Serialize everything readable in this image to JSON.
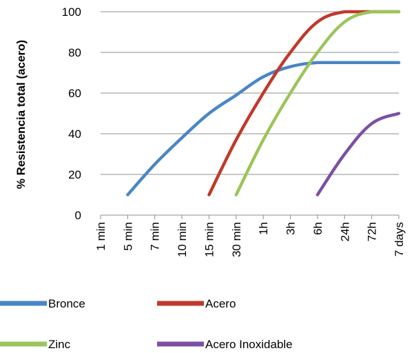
{
  "chart_data": {
    "type": "line",
    "ylabel": "% Resistencia total (acero)",
    "xlabel": "",
    "ylim": [
      0,
      100
    ],
    "yticks": [
      0,
      20,
      40,
      60,
      80,
      100
    ],
    "categories": [
      "1 min",
      "5 min",
      "7 min",
      "10 min",
      "15 min",
      "30 min",
      "1h",
      "3h",
      "6h",
      "24h",
      "72h",
      "7 days"
    ],
    "grid": true,
    "legend_position": "bottom",
    "series": [
      {
        "name": "Bronce",
        "color": "#4A86C5",
        "points": [
          [
            1,
            10
          ],
          [
            2,
            25
          ],
          [
            3,
            38
          ],
          [
            4,
            50
          ],
          [
            5,
            59
          ],
          [
            6,
            68
          ],
          [
            7,
            73
          ],
          [
            8,
            75
          ],
          [
            9,
            75
          ],
          [
            10,
            75
          ],
          [
            11,
            75
          ]
        ]
      },
      {
        "name": "Acero",
        "color": "#C0392B",
        "points": [
          [
            4,
            10
          ],
          [
            5,
            37
          ],
          [
            6,
            60
          ],
          [
            7,
            80
          ],
          [
            8,
            95
          ],
          [
            9,
            100
          ],
          [
            10,
            100
          ],
          [
            11,
            100
          ]
        ]
      },
      {
        "name": "Zinc",
        "color": "#9BC55A",
        "points": [
          [
            5,
            10
          ],
          [
            6,
            37
          ],
          [
            7,
            60
          ],
          [
            8,
            80
          ],
          [
            9,
            95
          ],
          [
            10,
            100
          ],
          [
            11,
            100
          ]
        ]
      },
      {
        "name": "Acero Inoxidable",
        "color": "#7B4FA6",
        "points": [
          [
            8,
            10
          ],
          [
            9,
            30
          ],
          [
            10,
            45
          ],
          [
            11,
            50
          ]
        ]
      }
    ]
  }
}
